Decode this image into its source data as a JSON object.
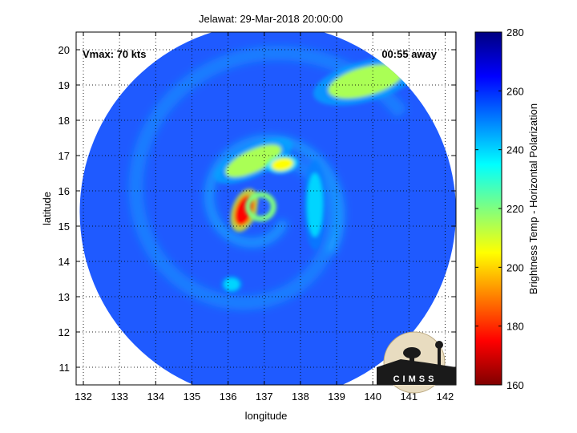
{
  "chart_data": {
    "type": "heatmap",
    "title": "Jelawat: 29-Mar-2018 20:00:00",
    "xlabel": "longitude",
    "ylabel": "latitude",
    "xlim": [
      131.8,
      142.3
    ],
    "ylim": [
      10.5,
      20.5
    ],
    "x_ticks": [
      "132",
      "133",
      "134",
      "135",
      "136",
      "137",
      "138",
      "139",
      "140",
      "141",
      "142"
    ],
    "y_ticks": [
      "11",
      "12",
      "13",
      "14",
      "15",
      "16",
      "17",
      "18",
      "19",
      "20"
    ],
    "grid": true,
    "annotations": {
      "vmax": "Vmax: 70 kts",
      "away": "00:55 away",
      "logo_text": "CIMSS"
    },
    "colorbar": {
      "label": "Brightness Temp - Horizontal Polarization",
      "ticks": [
        "280",
        "260",
        "240",
        "220",
        "200",
        "180",
        "160"
      ],
      "range": [
        160,
        280
      ],
      "colormap": "jet"
    },
    "storm_center": {
      "lon": 136.9,
      "lat": 15.6
    },
    "swath_disk": {
      "center_lon": 137.1,
      "center_lat": 15.4,
      "radius_deg": 5.2
    },
    "features": [
      {
        "name": "eyewall-west",
        "lon": 136.45,
        "lat": 15.45,
        "value": 175
      },
      {
        "name": "eyewall-ring",
        "lon": 136.9,
        "lat": 15.55,
        "value": 220
      },
      {
        "name": "inner-band-north",
        "lon": 136.7,
        "lat": 16.85,
        "value": 215
      },
      {
        "name": "band-spot-northeast",
        "lon": 137.5,
        "lat": 16.75,
        "value": 205
      },
      {
        "name": "outer-band-northeast",
        "lon": 139.8,
        "lat": 19.1,
        "value": 215
      },
      {
        "name": "band-east",
        "lon": 138.4,
        "lat": 15.6,
        "value": 240
      },
      {
        "name": "spot-southwest",
        "lon": 136.1,
        "lat": 13.35,
        "value": 240
      }
    ]
  }
}
